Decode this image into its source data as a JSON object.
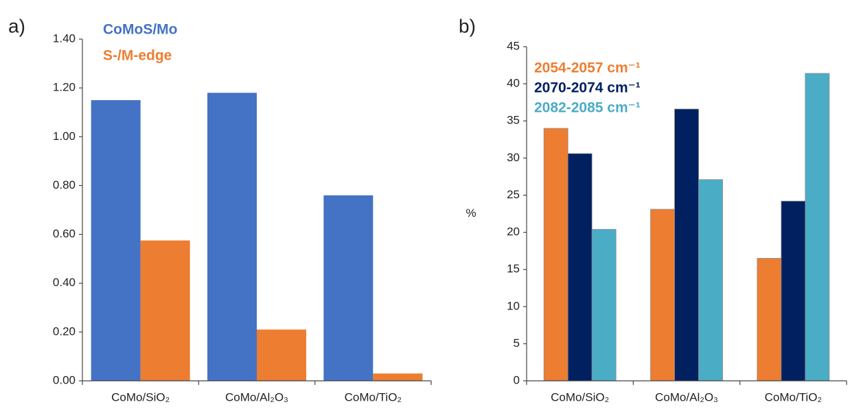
{
  "chart_data": [
    {
      "type": "bar",
      "label": "a)",
      "categories": [
        "CoMo/SiO₂",
        "CoMo/Al₂O₃",
        "CoMo/TiO₂"
      ],
      "series": [
        {
          "name": "CoMoS/Mo",
          "color": "#4472c4",
          "values": [
            1.15,
            1.18,
            0.76
          ]
        },
        {
          "name": "S-/M-edge",
          "color": "#ed7d31",
          "values": [
            0.575,
            0.21,
            0.03
          ]
        }
      ],
      "ylim": [
        0,
        1.4
      ],
      "yticks": [
        {
          "value": 0,
          "label": "0.00"
        },
        {
          "value": 0.2,
          "label": "0.20"
        },
        {
          "value": 0.4,
          "label": "0.40"
        },
        {
          "value": 0.6,
          "label": "0.60"
        },
        {
          "value": 0.8,
          "label": "0.80"
        },
        {
          "value": 1.0,
          "label": "1.00"
        },
        {
          "value": 1.2,
          "label": "1.20"
        },
        {
          "value": 1.4,
          "label": "1.40"
        }
      ]
    },
    {
      "type": "bar",
      "label": "b)",
      "y_label": "%",
      "categories": [
        "CoMo/SiO₂",
        "CoMo/Al₂O₃",
        "CoMo/TiO₂"
      ],
      "series": [
        {
          "name": "2054-2057 cm⁻¹",
          "color": "#ed7d31",
          "values": [
            34,
            23.1,
            16.5
          ]
        },
        {
          "name": "2070-2074 cm⁻¹",
          "color": "#002060",
          "values": [
            30.6,
            36.6,
            24.2
          ]
        },
        {
          "name": "2082-2085 cm⁻¹",
          "color": "#4bacc6",
          "values": [
            20.4,
            27.1,
            41.4
          ]
        }
      ],
      "ylim": [
        0,
        45
      ],
      "yticks": [
        0,
        5,
        10,
        15,
        20,
        25,
        30,
        35,
        40,
        45
      ]
    }
  ]
}
